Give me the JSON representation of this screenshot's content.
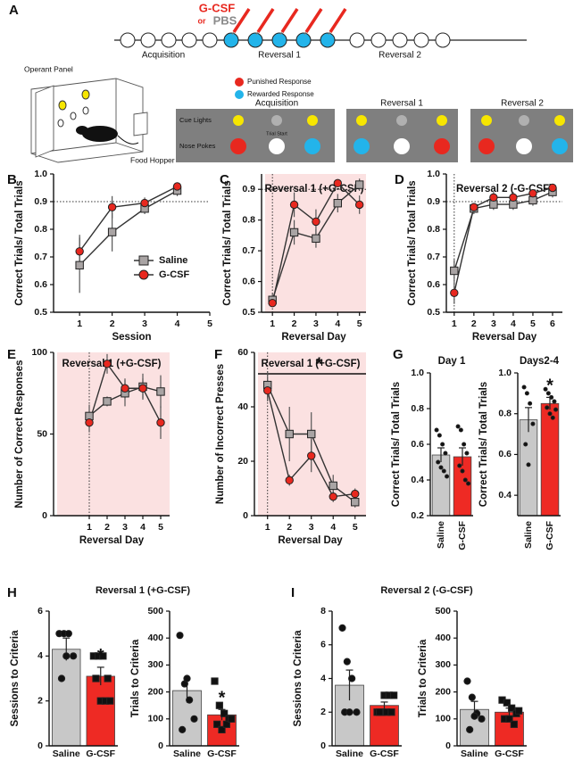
{
  "panel_a": {
    "label": "A",
    "injection": "G-CSF",
    "or": "or",
    "control": "PBS",
    "phases": [
      "Acquisition",
      "Reversal 1",
      "Reversal 2"
    ],
    "operant_panel": "Operant Panel",
    "food_hopper": "Food Hopper",
    "legend": [
      "Punished Response",
      "Rewarded Response"
    ],
    "rows": [
      "Cue Lights",
      "Nose Pokes"
    ],
    "trial_start": "Trial Start",
    "boxes": [
      "Acquisition",
      "Reversal 1",
      "Reversal 2"
    ]
  },
  "chart_data": [
    {
      "type": "line",
      "panel": "B",
      "xlabel": "Session",
      "ylabel": "Correct Trials/ Total Trials",
      "x": [
        1,
        2,
        3,
        4
      ],
      "xlim": [
        0.2,
        5
      ],
      "xticks": [
        1,
        2,
        3,
        4,
        5
      ],
      "ylim": [
        0.5,
        1.0
      ],
      "yticks": [
        0.5,
        0.6,
        0.7,
        0.8,
        0.9,
        {
          "value": 1,
          "label": "1.0"
        }
      ],
      "hline": 0.9,
      "legend": "lower right",
      "series": [
        {
          "name": "Saline",
          "color": "#a9a4a4",
          "marker": "square",
          "values": [
            0.67,
            0.79,
            0.875,
            0.94
          ],
          "errors": [
            0.1,
            0.07,
            0.02,
            0.02
          ]
        },
        {
          "name": "G-CSF",
          "color": "#e8281f",
          "marker": "circle",
          "values": [
            0.72,
            0.88,
            0.895,
            0.955
          ],
          "errors": [
            0.06,
            0.04,
            0.02,
            0.01
          ]
        }
      ]
    },
    {
      "type": "line",
      "panel": "C",
      "title": "Reversal 1 (+G-CSF)",
      "xlabel": "Reversal Day",
      "ylabel": "Correct Trials/ Total Trials",
      "x": [
        1,
        2,
        3,
        4,
        5
      ],
      "xlim": [
        0.5,
        5.3
      ],
      "xticks": [
        1,
        2,
        3,
        4,
        5
      ],
      "ylim": [
        0.5,
        0.95
      ],
      "yticks": [
        0.5,
        0.6,
        0.7,
        0.8,
        0.9
      ],
      "hline": 0.9,
      "vline": 1,
      "shaded": true,
      "series": [
        {
          "name": "Saline",
          "color": "#a9a4a4",
          "marker": "square",
          "values": [
            0.54,
            0.76,
            0.74,
            0.855,
            0.915
          ],
          "errors": [
            0.02,
            0.04,
            0.03,
            0.03,
            0.02
          ]
        },
        {
          "name": "G-CSF",
          "color": "#e8281f",
          "marker": "circle",
          "values": [
            0.53,
            0.85,
            0.795,
            0.92,
            0.85
          ],
          "errors": [
            0.01,
            0.04,
            0.04,
            0.01,
            0.03
          ]
        }
      ]
    },
    {
      "type": "line",
      "panel": "D",
      "title": "Reversal 2 (-G-CSF)",
      "xlabel": "Reversal Day",
      "ylabel": "Correct Trials/ Total Trials",
      "x": [
        1,
        2,
        3,
        4,
        5,
        6
      ],
      "xlim": [
        0.6,
        6.5
      ],
      "xticks": [
        1,
        2,
        3,
        4,
        5,
        6
      ],
      "ylim": [
        0.5,
        1.0
      ],
      "yticks": [
        0.5,
        0.6,
        0.7,
        0.8,
        0.9,
        {
          "value": 1,
          "label": "1.0"
        }
      ],
      "hline": 0.9,
      "vline": 1,
      "series": [
        {
          "name": "Saline",
          "color": "#a9a4a4",
          "marker": "square",
          "values": [
            0.65,
            0.875,
            0.89,
            0.89,
            0.905,
            0.935
          ],
          "errors": [
            0.04,
            0.02,
            0.02,
            0.02,
            0.02,
            0.02
          ]
        },
        {
          "name": "G-CSF",
          "color": "#e8281f",
          "marker": "circle",
          "values": [
            0.57,
            0.88,
            0.915,
            0.915,
            0.93,
            0.95
          ],
          "errors": [
            0.04,
            0.01,
            0.02,
            0.02,
            0.01,
            0.01
          ]
        }
      ]
    },
    {
      "type": "line",
      "panel": "E",
      "title": "Reversal 1 (+G-CSF)",
      "xlabel": "Reversal Day",
      "ylabel": "Number of Correct Responses",
      "x": [
        1,
        2,
        3,
        4,
        5
      ],
      "xlim": [
        -1,
        5.5
      ],
      "xticks": [
        1,
        2,
        3,
        4,
        5
      ],
      "ylim": [
        0,
        100
      ],
      "yticks": [
        0,
        50,
        100
      ],
      "vline": 1,
      "shaded": true,
      "series": [
        {
          "name": "Saline",
          "color": "#a9a4a4",
          "marker": "square",
          "values": [
            61,
            70,
            75,
            79,
            76
          ],
          "errors": [
            7,
            3,
            8,
            8,
            10
          ]
        },
        {
          "name": "G-CSF",
          "color": "#e8281f",
          "marker": "circle",
          "values": [
            57,
            93,
            78,
            78,
            57
          ],
          "errors": [
            6,
            6,
            6,
            6,
            10
          ]
        }
      ]
    },
    {
      "type": "line",
      "panel": "F",
      "title": "Reversal 1 (+G-CSF)",
      "annotation": "*",
      "xlabel": "Reversal Day",
      "ylabel": "Number of Incorrect Presses",
      "x": [
        1,
        2,
        3,
        4,
        5
      ],
      "xlim": [
        0.4,
        5.5
      ],
      "xticks": [
        1,
        2,
        3,
        4,
        5
      ],
      "ylim": [
        0,
        60
      ],
      "yticks": [
        0,
        20,
        40,
        60
      ],
      "vline": 1,
      "shaded": true,
      "series": [
        {
          "name": "Saline",
          "color": "#a9a4a4",
          "marker": "square",
          "values": [
            48,
            30,
            30,
            11,
            5
          ],
          "errors": [
            5,
            10,
            8,
            4,
            2
          ]
        },
        {
          "name": "G-CSF",
          "color": "#e8281f",
          "marker": "circle",
          "values": [
            46,
            13,
            22,
            7,
            8
          ],
          "errors": [
            4,
            2,
            6,
            2,
            2
          ]
        }
      ]
    },
    {
      "type": "bar",
      "panel": "G",
      "title": "Day 1",
      "ylabel": "Correct Trials/ Total Trials",
      "categories": [
        "Saline",
        "G-CSF"
      ],
      "colors": [
        "#c8c8c8",
        "#ee2a24"
      ],
      "values": [
        0.54,
        0.53
      ],
      "errors": [
        0.04,
        0.05
      ],
      "points": [
        [
          0.68,
          0.65,
          0.6,
          0.55,
          0.5,
          0.47,
          0.45,
          0.42
        ],
        [
          0.7,
          0.68,
          0.6,
          0.55,
          0.48,
          0.45,
          0.4,
          0.38
        ]
      ],
      "ylim": [
        0.2,
        1.0
      ],
      "yticks": [
        0.2,
        0.4,
        0.6,
        0.8,
        {
          "value": 1,
          "label": "1.0"
        }
      ]
    },
    {
      "type": "bar",
      "title": "Days2-4",
      "annotation": "*",
      "ylabel": "Correct Trials/ Total Trials",
      "categories": [
        "Saline",
        "G-CSF"
      ],
      "colors": [
        "#c8c8c8",
        "#ee2a24"
      ],
      "values": [
        0.77,
        0.85
      ],
      "errors": [
        0.06,
        0.03
      ],
      "points": [
        [
          0.93,
          0.9,
          0.85,
          0.75,
          0.65,
          0.55
        ],
        [
          0.92,
          0.9,
          0.88,
          0.86,
          0.83,
          0.8,
          0.78,
          0.82
        ]
      ],
      "ylim": [
        0.3,
        1.0
      ],
      "yticks": [
        0.4,
        0.6,
        0.8,
        {
          "value": 1,
          "label": "1.0"
        }
      ]
    },
    {
      "type": "bar",
      "panel": "H",
      "title": "Reversal 1 (+G-CSF)",
      "annotation": "*",
      "ylabel": "Sessions to Criteria",
      "categories": [
        "Saline",
        "G-CSF"
      ],
      "colors": [
        "#c8c8c8",
        "#ee2a24"
      ],
      "values": [
        4.3,
        3.1
      ],
      "errors": [
        0.5,
        0.4
      ],
      "points": [
        [
          5,
          5,
          5,
          4,
          3,
          4
        ],
        [
          4,
          4,
          4,
          3,
          3,
          2,
          2,
          2
        ]
      ],
      "ylim": [
        0,
        6
      ],
      "yticks": [
        0,
        2,
        4,
        6
      ]
    },
    {
      "type": "bar",
      "annotation": "*",
      "ylabel": "Trials to Criteria",
      "categories": [
        "Saline",
        "G-CSF"
      ],
      "colors": [
        "#c8c8c8",
        "#ee2a24"
      ],
      "values": [
        205,
        115
      ],
      "errors": [
        45,
        20
      ],
      "points": [
        [
          410,
          230,
          170,
          100,
          60,
          250
        ],
        [
          240,
          150,
          120,
          100,
          80,
          60,
          80,
          100
        ]
      ],
      "ylim": [
        0,
        500
      ],
      "yticks": [
        0,
        100,
        200,
        300,
        400,
        500
      ]
    },
    {
      "type": "bar",
      "panel": "I",
      "title": "Reversal 2 (-G-CSF)",
      "ylabel": "Sessions to Criteria",
      "categories": [
        "Saline",
        "G-CSF"
      ],
      "colors": [
        "#c8c8c8",
        "#ee2a24"
      ],
      "values": [
        3.6,
        2.4
      ],
      "errors": [
        0.9,
        0.2
      ],
      "points": [
        [
          7,
          5,
          4,
          2,
          2,
          2
        ],
        [
          2,
          2,
          2,
          2,
          2,
          3,
          3,
          3
        ]
      ],
      "ylim": [
        0,
        8
      ],
      "yticks": [
        0,
        2,
        4,
        6,
        8
      ]
    },
    {
      "type": "bar",
      "ylabel": "Trials to Criteria",
      "categories": [
        "Saline",
        "G-CSF"
      ],
      "colors": [
        "#c8c8c8",
        "#ee2a24"
      ],
      "values": [
        135,
        125
      ],
      "errors": [
        30,
        15
      ],
      "points": [
        [
          240,
          180,
          120,
          100,
          60,
          110
        ],
        [
          170,
          160,
          140,
          120,
          100,
          100,
          80,
          130
        ]
      ],
      "ylim": [
        0,
        500
      ],
      "yticks": [
        0,
        100,
        200,
        300,
        400,
        500
      ]
    }
  ]
}
